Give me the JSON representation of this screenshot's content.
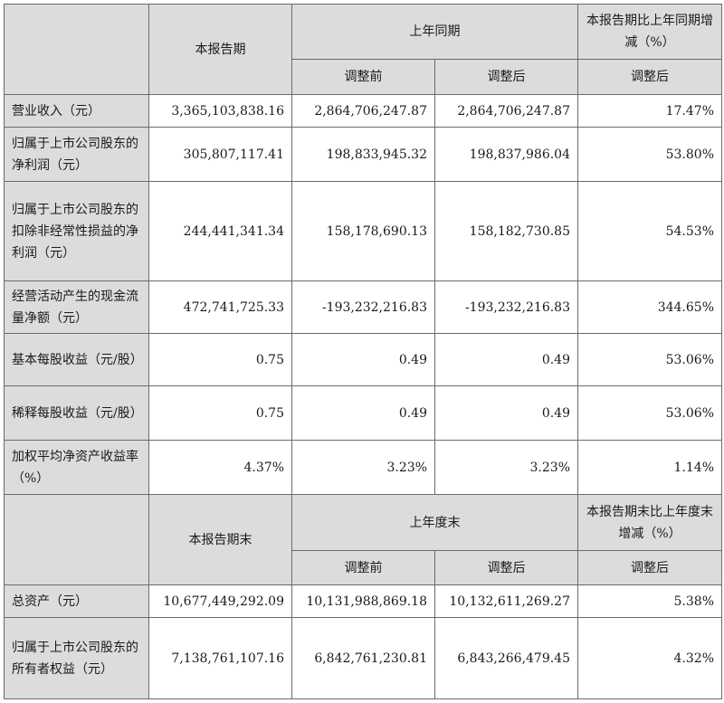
{
  "section1": {
    "header": {
      "current": "本报告期",
      "prior": "上年同期",
      "change": "本报告期比上年同期增减（%）",
      "before_adj": "调整前",
      "after_adj": "调整后",
      "change_after_adj": "调整后"
    },
    "rows": [
      {
        "label": "营业收入（元）",
        "current": "3,365,103,838.16",
        "before": "2,864,706,247.87",
        "after": "2,864,706,247.87",
        "change": "17.47%"
      },
      {
        "label": "归属于上市公司股东的净利润（元）",
        "current": "305,807,117.41",
        "before": "198,833,945.32",
        "after": "198,837,986.04",
        "change": "53.80%"
      },
      {
        "label": "归属于上市公司股东的扣除非经常性损益的净利润（元）",
        "current": "244,441,341.34",
        "before": "158,178,690.13",
        "after": "158,182,730.85",
        "change": "54.53%"
      },
      {
        "label": "经营活动产生的现金流量净额（元）",
        "current": "472,741,725.33",
        "before": "-193,232,216.83",
        "after": "-193,232,216.83",
        "change": "344.65%"
      },
      {
        "label": "基本每股收益（元/股）",
        "current": "0.75",
        "before": "0.49",
        "after": "0.49",
        "change": "53.06%"
      },
      {
        "label": "稀释每股收益（元/股）",
        "current": "0.75",
        "before": "0.49",
        "after": "0.49",
        "change": "53.06%"
      },
      {
        "label": "加权平均净资产收益率（%）",
        "current": "4.37%",
        "before": "3.23%",
        "after": "3.23%",
        "change": "1.14%"
      }
    ]
  },
  "section2": {
    "header": {
      "current": "本报告期末",
      "prior": "上年度末",
      "change": "本报告期末比上年度末增减（%）",
      "before_adj": "调整前",
      "after_adj": "调整后",
      "change_after_adj": "调整后"
    },
    "rows": [
      {
        "label": "总资产（元）",
        "current": "10,677,449,292.09",
        "before": "10,131,988,869.18",
        "after": "10,132,611,269.27",
        "change": "5.38%"
      },
      {
        "label": "归属于上市公司股东的所有者权益（元）",
        "current": "7,138,761,107.16",
        "before": "6,842,761,230.81",
        "after": "6,843,266,479.45",
        "change": "4.32%"
      }
    ]
  }
}
